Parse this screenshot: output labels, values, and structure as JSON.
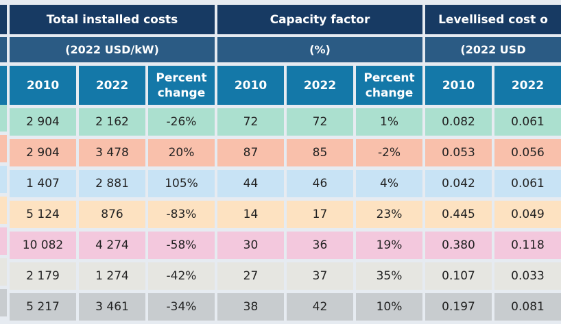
{
  "groups": [
    {
      "title": "Total installed costs",
      "unit": "(2022 USD/kW)"
    },
    {
      "title": "Capacity factor",
      "unit": "(%)"
    },
    {
      "title": "Levellised cost o",
      "unit": "(2022 USD"
    }
  ],
  "columns": [
    "2010",
    "2022",
    "Percent change",
    "2010",
    "2022",
    "Percent change",
    "2010",
    "2022"
  ],
  "row_colors": [
    "#abe0cf",
    "#f9c0ab",
    "#c8e3f5",
    "#fde2c1",
    "#f3c8dd",
    "#e6e6e1",
    "#c8cccf"
  ],
  "rows": [
    [
      "2 904",
      "2 162",
      "-26%",
      "72",
      "72",
      "1%",
      "0.082",
      "0.061"
    ],
    [
      "2 904",
      "3 478",
      "20%",
      "87",
      "85",
      "-2%",
      "0.053",
      "0.056"
    ],
    [
      "1 407",
      "2 881",
      "105%",
      "44",
      "46",
      "4%",
      "0.042",
      "0.061"
    ],
    [
      "5 124",
      "876",
      "-83%",
      "14",
      "17",
      "23%",
      "0.445",
      "0.049"
    ],
    [
      "10 082",
      "4 274",
      "-58%",
      "30",
      "36",
      "19%",
      "0.380",
      "0.118"
    ],
    [
      "2 179",
      "1 274",
      "-42%",
      "27",
      "37",
      "35%",
      "0.107",
      "0.033"
    ],
    [
      "5 217",
      "3 461",
      "-34%",
      "38",
      "42",
      "10%",
      "0.197",
      "0.081"
    ]
  ]
}
